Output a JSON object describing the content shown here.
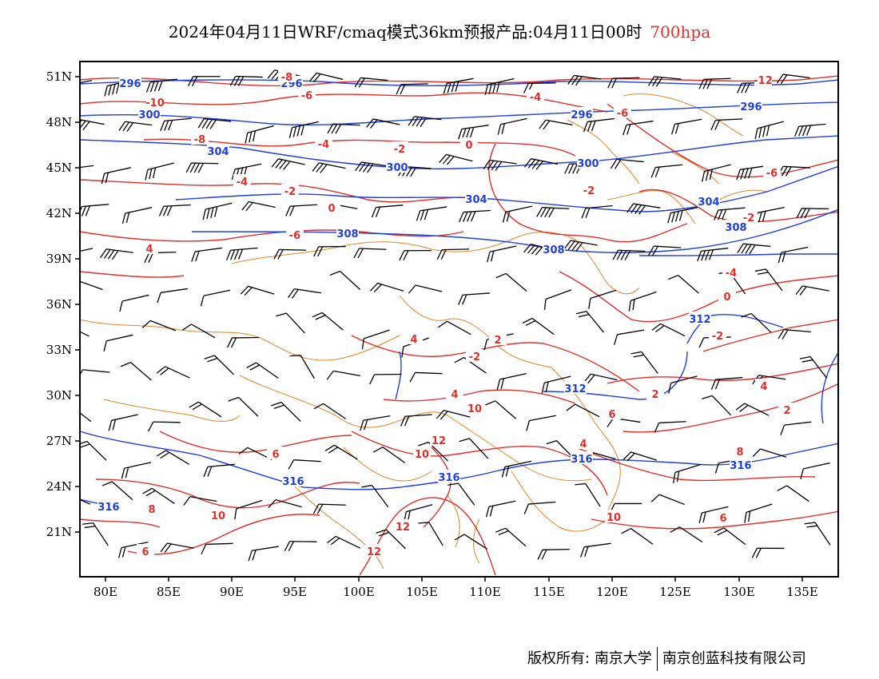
{
  "title": {
    "main": "2024年04月11日WRF/cmaq模式36km预报产品:04月11日00时",
    "level": "700hpa"
  },
  "axes": {
    "lat_labels": [
      "51N",
      "48N",
      "45N",
      "42N",
      "39N",
      "36N",
      "33N",
      "30N",
      "27N",
      "24N",
      "21N"
    ],
    "lon_labels": [
      "80E",
      "85E",
      "90E",
      "95E",
      "100E",
      "105E",
      "110E",
      "115E",
      "120E",
      "125E",
      "130E",
      "135E"
    ]
  },
  "contour_labels": {
    "blue_geopotential": [
      "296",
      "296",
      "300",
      "296",
      "296",
      "304",
      "300",
      "300",
      "304",
      "304",
      "308",
      "308",
      "308",
      "312",
      "312",
      "316",
      "316",
      "316",
      "316",
      "316"
    ],
    "red_temperature": [
      "-8",
      "-12",
      "-10",
      "-6",
      "-6",
      "-4",
      "-8",
      "-4",
      "-2",
      "0",
      "-6",
      "-4",
      "-2",
      "-2",
      "0",
      "-6",
      "4",
      "-4",
      "-2",
      "0",
      "4",
      "-2",
      "2",
      "-2",
      "2",
      "4",
      "6",
      "4",
      "2",
      "10",
      "12",
      "10",
      "4",
      "8",
      "6",
      "10",
      "6",
      "12",
      "8",
      "10",
      "12",
      "6"
    ]
  },
  "colors": {
    "geopotential": "#1f3fe0",
    "temperature": "#e0302c",
    "boundaries": "#e0862a",
    "wind_barbs": "#000000",
    "title_level": "#e0302c"
  },
  "legend_icons": [
    "wind-barb-icon"
  ],
  "copyright": {
    "label": "版权所有:",
    "org1": "南京大学",
    "org2": "南京创蓝科技有限公司"
  }
}
